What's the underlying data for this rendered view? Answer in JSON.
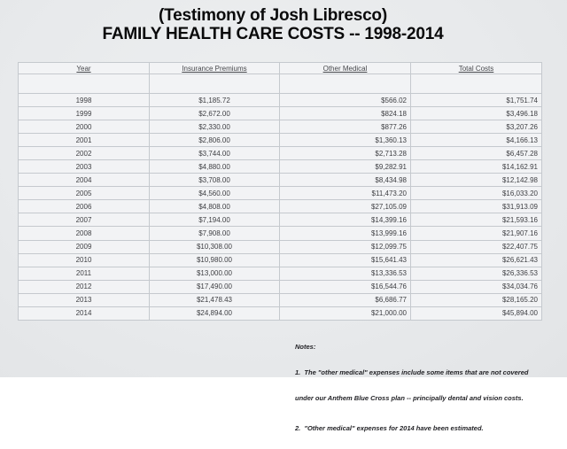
{
  "page": {
    "title_line1": "(Testimony of Josh Libresco)",
    "title_line2": "FAMILY HEALTH CARE COSTS -- 1998-2014"
  },
  "table": {
    "headers": [
      "Year",
      "Insurance Premiums",
      "Other Medical",
      "Total Costs"
    ],
    "rows": [
      [
        "1998",
        "$1,185.72",
        "$566.02",
        "$1,751.74"
      ],
      [
        "1999",
        "$2,672.00",
        "$824.18",
        "$3,496.18"
      ],
      [
        "2000",
        "$2,330.00",
        "$877.26",
        "$3,207.26"
      ],
      [
        "2001",
        "$2,806.00",
        "$1,360.13",
        "$4,166.13"
      ],
      [
        "2002",
        "$3,744.00",
        "$2,713.28",
        "$6,457.28"
      ],
      [
        "2003",
        "$4,880.00",
        "$9,282.91",
        "$14,162.91"
      ],
      [
        "2004",
        "$3,708.00",
        "$8,434.98",
        "$12,142.98"
      ],
      [
        "2005",
        "$4,560.00",
        "$11,473.20",
        "$16,033.20"
      ],
      [
        "2006",
        "$4,808.00",
        "$27,105.09",
        "$31,913.09"
      ],
      [
        "2007",
        "$7,194.00",
        "$14,399.16",
        "$21,593.16"
      ],
      [
        "2008",
        "$7,908.00",
        "$13,999.16",
        "$21,907.16"
      ],
      [
        "2009",
        "$10,308.00",
        "$12,099.75",
        "$22,407.75"
      ],
      [
        "2010",
        "$10,980.00",
        "$15,641.43",
        "$26,621.43"
      ],
      [
        "2011",
        "$13,000.00",
        "$13,336.53",
        "$26,336.53"
      ],
      [
        "2012",
        "$17,490.00",
        "$16,544.76",
        "$34,034.76"
      ],
      [
        "2013",
        "$21,478.43",
        "$6,686.77",
        "$28,165.20"
      ],
      [
        "2014",
        "$24,894.00",
        "$21,000.00",
        "$45,894.00"
      ]
    ]
  },
  "notes": {
    "heading": "Notes:",
    "note1_lines": [
      "1.  The \"other medical\" expenses include some items that are not covered",
      "under our Anthem Blue Cross plan -- principally dental and vision costs."
    ],
    "note2": "2.  \"Other medical\" expenses for 2014 have been estimated."
  },
  "colors": {
    "page_background": "#e8eaec",
    "table_background": "#f2f3f5",
    "table_border_inner": "#c5c9ce",
    "table_border_outer": "#b2b6bc",
    "table_text": "#3e3f43",
    "title_text": "#0a0a0b",
    "notes_text": "#232327"
  }
}
